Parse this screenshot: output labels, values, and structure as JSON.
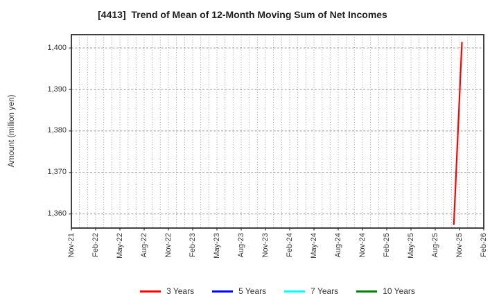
{
  "chart_data": {
    "type": "line",
    "title": "[4413]  Trend of Mean of 12-Month Moving Sum of Net Incomes",
    "ylabel": "Amount (million yen)",
    "y_ticks": [
      1360,
      1370,
      1380,
      1390,
      1400
    ],
    "ylim": [
      1356.6,
      1403.2
    ],
    "x_tick_labels": [
      "Nov-21",
      "Feb-22",
      "May-22",
      "Aug-22",
      "Nov-22",
      "Feb-23",
      "May-23",
      "Aug-23",
      "Nov-23",
      "Feb-24",
      "May-24",
      "Aug-24",
      "Nov-24",
      "Feb-25",
      "May-25",
      "Aug-25",
      "Nov-25",
      "Feb-26"
    ],
    "x_tick_step_months": 3,
    "x_total_months": 51,
    "grid": {
      "show": true,
      "color": "#9a9a9a",
      "horizontal_style": "dashed",
      "vertical_style": "dotted",
      "vertical_every_months": 1
    },
    "axis_color": "#333333",
    "text_color": "#333333",
    "background_color": "#ffffff",
    "legend_position": "bottom-center",
    "series": [
      {
        "name": "3 Years",
        "color": "#ff0000",
        "points": [
          {
            "date": "Oct-25",
            "month_offset": 47.3,
            "value": 1357.5
          },
          {
            "date": "Nov-25",
            "month_offset": 48.3,
            "value": 1401.3
          }
        ]
      },
      {
        "name": "5 Years",
        "color": "#0000ff",
        "points": []
      },
      {
        "name": "7 Years",
        "color": "#00ffff",
        "points": []
      },
      {
        "name": "10 Years",
        "color": "#008000",
        "points": []
      }
    ]
  }
}
